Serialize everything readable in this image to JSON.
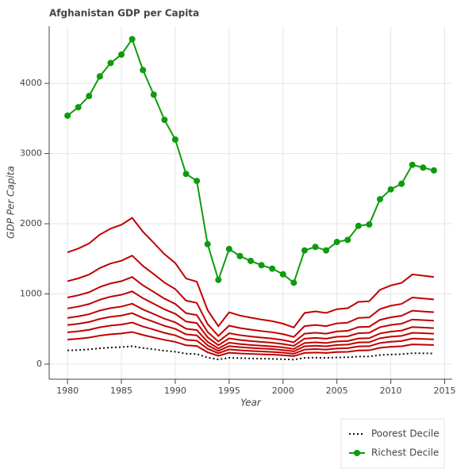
{
  "chart_data": {
    "type": "line",
    "title": "Afghanistan GDP per Capita",
    "x_label": "Year",
    "y_label": "GDP Per Capita",
    "x": [
      1980,
      1981,
      1982,
      1983,
      1984,
      1985,
      1986,
      1987,
      1988,
      1989,
      1990,
      1991,
      1992,
      1993,
      1994,
      1995,
      1996,
      1997,
      1998,
      1999,
      2000,
      2001,
      2002,
      2003,
      2004,
      2005,
      2006,
      2007,
      2008,
      2009,
      2010,
      2011,
      2012,
      2013,
      2014
    ],
    "xlim": [
      1978.3,
      2015.7
    ],
    "xticks": [
      1980,
      1985,
      1990,
      1995,
      2000,
      2005,
      2010,
      2015
    ],
    "ylim": [
      -215,
      4815
    ],
    "yticks": [
      0,
      1000,
      2000,
      3000,
      4000
    ],
    "grid": true,
    "legend": "bottom-right",
    "series": [
      {
        "name": "Poorest Decile",
        "color": "#111111",
        "dash": "dotted",
        "values": [
          195,
          201,
          210,
          226,
          236,
          243,
          255,
          230,
          211,
          191,
          176,
          149,
          144,
          94,
          66,
          90,
          85,
          81,
          78,
          75,
          70,
          64,
          89,
          92,
          89,
          96,
          97,
          108,
          109,
          129,
          137,
          141,
          156,
          154,
          152
        ]
      },
      {
        "color": "#c00000",
        "values": [
          350,
          362,
          378,
          406,
          425,
          437,
          458,
          415,
          380,
          345,
          317,
          268,
          258,
          169,
          119,
          162,
          152,
          146,
          140,
          135,
          127,
          115,
          160,
          165,
          160,
          172,
          175,
          195,
          197,
          233,
          247,
          254,
          281,
          277,
          273
        ]
      },
      {
        "color": "#c00000",
        "values": [
          453,
          468,
          489,
          525,
          549,
          564,
          593,
          536,
          492,
          445,
          410,
          347,
          334,
          219,
          154,
          210,
          197,
          188,
          180,
          174,
          164,
          148,
          207,
          214,
          207,
          223,
          227,
          252,
          255,
          301,
          319,
          329,
          364,
          358,
          353
        ]
      },
      {
        "color": "#c00000",
        "values": [
          556,
          575,
          600,
          644,
          674,
          692,
          727,
          658,
          603,
          546,
          502,
          425,
          410,
          268,
          188,
          257,
          242,
          231,
          221,
          214,
          201,
          182,
          254,
          262,
          254,
          273,
          278,
          309,
          312,
          369,
          391,
          403,
          446,
          440,
          433
        ]
      },
      {
        "color": "#c00000",
        "values": [
          658,
          681,
          711,
          763,
          798,
          820,
          861,
          779,
          714,
          647,
          595,
          504,
          485,
          318,
          223,
          305,
          286,
          273,
          262,
          253,
          238,
          216,
          301,
          311,
          301,
          324,
          329,
          366,
          370,
          437,
          463,
          478,
          528,
          521,
          513
        ]
      },
      {
        "color": "#c00000",
        "values": [
          793,
          820,
          856,
          918,
          961,
          988,
          1037,
          939,
          860,
          780,
          717,
          607,
          585,
          383,
          269,
          367,
          345,
          329,
          316,
          305,
          287,
          260,
          363,
          374,
          363,
          390,
          396,
          441,
          446,
          526,
          558,
          576,
          636,
          627,
          618
        ]
      },
      {
        "color": "#c00000",
        "values": [
          949,
          981,
          1024,
          1099,
          1150,
          1182,
          1241,
          1123,
          1029,
          933,
          858,
          726,
          699,
          458,
          322,
          440,
          413,
          394,
          378,
          364,
          343,
          311,
          434,
          448,
          434,
          466,
          474,
          528,
          533,
          630,
          667,
          689,
          761,
          750,
          740
        ]
      },
      {
        "color": "#c00000",
        "values": [
          1182,
          1222,
          1276,
          1369,
          1433,
          1473,
          1546,
          1399,
          1283,
          1162,
          1069,
          905,
          872,
          571,
          401,
          548,
          514,
          491,
          471,
          454,
          428,
          387,
          541,
          558,
          541,
          581,
          591,
          658,
          665,
          785,
          832,
          858,
          949,
          935,
          922
        ]
      },
      {
        "color": "#c00000",
        "values": [
          1593,
          1647,
          1719,
          1845,
          1931,
          1985,
          2084,
          1886,
          1728,
          1566,
          1440,
          1220,
          1175,
          770,
          540,
          738,
          693,
          662,
          635,
          612,
          576,
          522,
          729,
          752,
          729,
          783,
          797,
          887,
          896,
          1058,
          1121,
          1157,
          1278,
          1260,
          1242
        ]
      },
      {
        "name": "Richest Decile",
        "color": "#0c9c0c",
        "markers": true,
        "values": [
          3540,
          3660,
          3820,
          4100,
          4290,
          4410,
          4630,
          4190,
          3840,
          3480,
          3200,
          2710,
          2610,
          1710,
          1200,
          1640,
          1540,
          1470,
          1410,
          1360,
          1280,
          1160,
          1620,
          1670,
          1620,
          1740,
          1770,
          1970,
          1990,
          2350,
          2490,
          2570,
          2840,
          2800,
          2760
        ]
      }
    ]
  }
}
